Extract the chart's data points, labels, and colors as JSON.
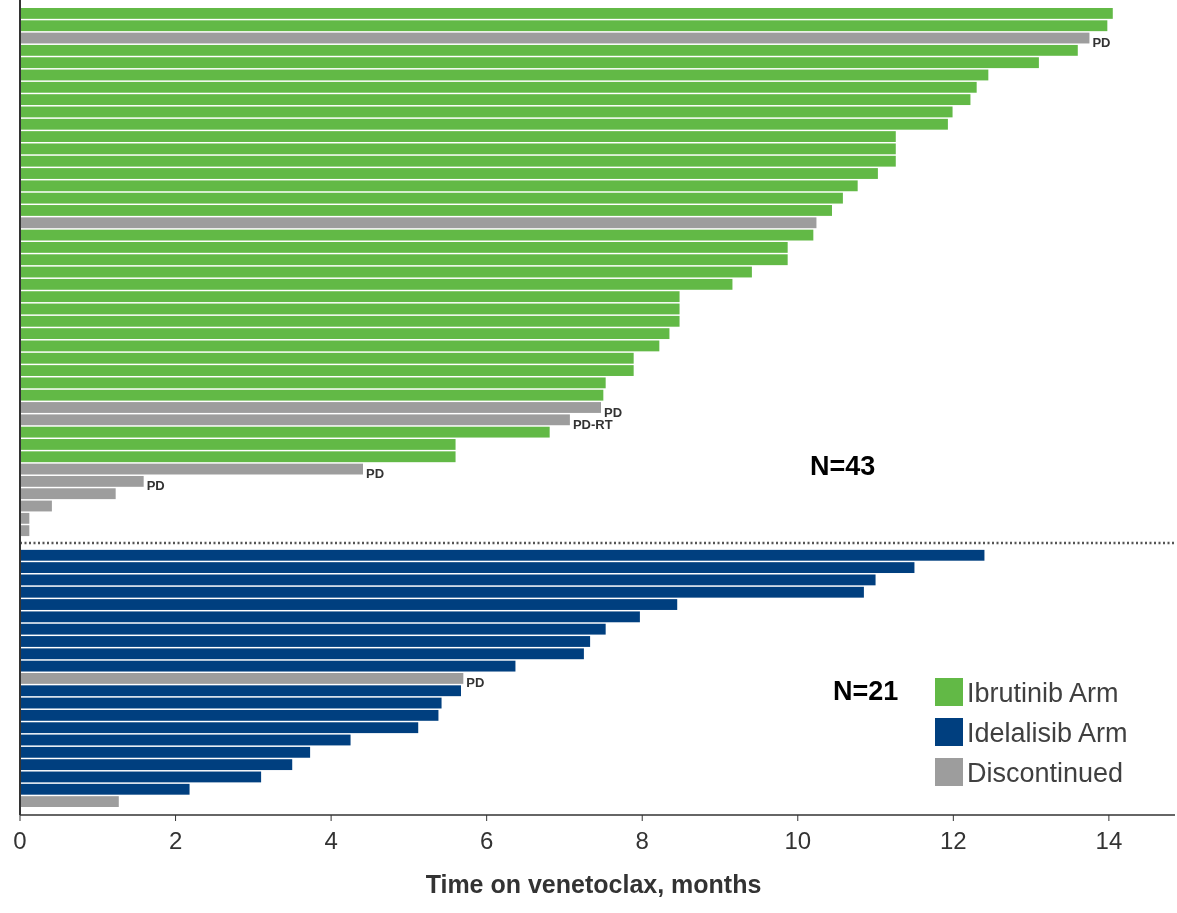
{
  "chart_data": {
    "type": "bar",
    "orientation": "horizontal",
    "xlabel": "Time on venetoclax, months",
    "categories": [
      null,
      null,
      null,
      null,
      null,
      null,
      null,
      null,
      null,
      null,
      null,
      null,
      null,
      null,
      null,
      null,
      null,
      null,
      null,
      null,
      null,
      null,
      null,
      null,
      null,
      null,
      null,
      null,
      null,
      null,
      null,
      null,
      null,
      null,
      null,
      null,
      null,
      null,
      null,
      null,
      null,
      null,
      null,
      null,
      null,
      null,
      null,
      null,
      null,
      null,
      null,
      null,
      null,
      null,
      null,
      null,
      null,
      null,
      null,
      null,
      null,
      null,
      null,
      null,
      null
    ],
    "series": [
      {
        "name": "Ibrutinib Arm",
        "color": "#62b946",
        "values": [
          14.05,
          13.98,
          null,
          13.6,
          13.1,
          12.45,
          12.3,
          12.22,
          11.99,
          11.93,
          11.26,
          11.26,
          11.26,
          11.03,
          10.77,
          10.58,
          10.44,
          null,
          10.2,
          9.87,
          9.87,
          9.41,
          9.16,
          8.48,
          8.48,
          8.48,
          8.35,
          8.22,
          7.89,
          7.89,
          7.53,
          7.5,
          null,
          null,
          6.81,
          5.6,
          5.6,
          null,
          null,
          null,
          null,
          null,
          null,
          null,
          null,
          null,
          null,
          null,
          null,
          null,
          null,
          null,
          null,
          null,
          null,
          null,
          null,
          null,
          null,
          null,
          null,
          null,
          null,
          null,
          null
        ]
      },
      {
        "name": "Idelalisib Arm",
        "color": "#003f7f",
        "values": [
          null,
          null,
          null,
          null,
          null,
          null,
          null,
          null,
          null,
          null,
          null,
          null,
          null,
          null,
          null,
          null,
          null,
          null,
          null,
          null,
          null,
          null,
          null,
          null,
          null,
          null,
          null,
          null,
          null,
          null,
          null,
          null,
          null,
          null,
          null,
          null,
          null,
          null,
          null,
          null,
          null,
          null,
          null,
          null,
          12.4,
          11.5,
          11.0,
          10.85,
          8.45,
          7.97,
          7.53,
          7.33,
          7.25,
          6.37,
          null,
          5.67,
          5.42,
          5.38,
          5.12,
          4.25,
          3.73,
          3.5,
          3.1,
          2.18,
          null
        ]
      },
      {
        "name": "Discontinued",
        "color": "#9d9d9d",
        "values": [
          null,
          null,
          13.75,
          null,
          null,
          null,
          null,
          null,
          null,
          null,
          null,
          null,
          null,
          null,
          null,
          null,
          null,
          10.24,
          null,
          null,
          null,
          null,
          null,
          null,
          null,
          null,
          null,
          null,
          null,
          null,
          null,
          null,
          7.47,
          7.07,
          null,
          null,
          null,
          4.41,
          1.59,
          1.23,
          0.41,
          0.12,
          0.12,
          null,
          null,
          null,
          null,
          null,
          null,
          null,
          null,
          null,
          null,
          null,
          5.7,
          null,
          null,
          null,
          null,
          null,
          null,
          null,
          null,
          null,
          1.27
        ],
        "value_labels": [
          null,
          null,
          "PD",
          null,
          null,
          null,
          null,
          null,
          null,
          null,
          null,
          null,
          null,
          null,
          null,
          null,
          null,
          null,
          null,
          null,
          null,
          null,
          null,
          null,
          null,
          null,
          null,
          null,
          null,
          null,
          null,
          null,
          "PD",
          "PD-RT",
          null,
          null,
          null,
          "PD",
          "PD",
          null,
          null,
          null,
          null,
          null,
          null,
          null,
          null,
          null,
          null,
          null,
          null,
          null,
          null,
          null,
          "PD",
          null,
          null,
          null,
          null,
          null,
          null,
          null,
          null,
          null,
          null
        ]
      }
    ],
    "annotations": [
      "N=43",
      "N=21"
    ],
    "xlim": [
      0,
      14.85
    ],
    "xticks": [
      0,
      2,
      4,
      6,
      8,
      10,
      12,
      14
    ],
    "tick_labels": "x",
    "legend": "bottom right",
    "grid": false
  }
}
